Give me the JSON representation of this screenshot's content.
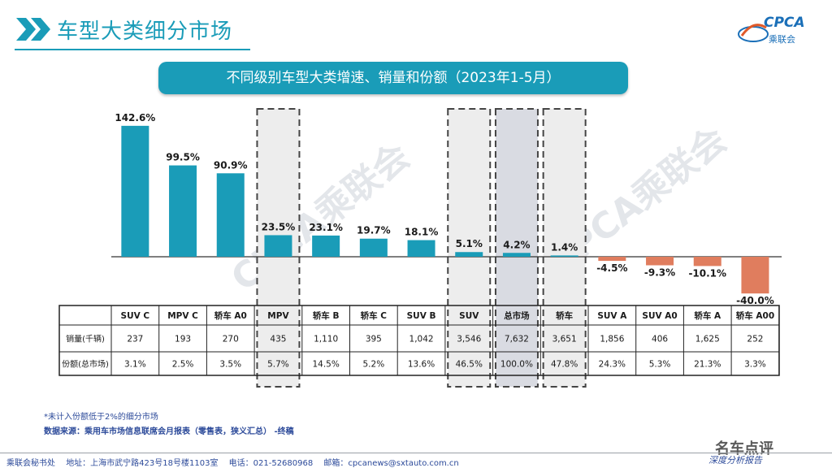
{
  "header": {
    "title": "车型大类细分市场",
    "logo_text": "CPCA",
    "logo_subtext": "乘联会"
  },
  "watermark": {
    "text": "CPCA乘联会"
  },
  "chart_data": {
    "type": "bar",
    "title": "不同级别车型大类增速、销量和份额（2023年1-5月）",
    "categories": [
      "SUV C",
      "MPV C",
      "轿车 A0",
      "MPV",
      "轿车 B",
      "轿车 C",
      "SUV B",
      "SUV",
      "总市场",
      "轿车",
      "SUV A",
      "SUV A0",
      "轿车 A",
      "轿车 A00"
    ],
    "growth_labels": [
      "142.6%",
      "99.5%",
      "90.9%",
      "23.5%",
      "23.1%",
      "19.7%",
      "18.1%",
      "5.1%",
      "4.2%",
      "1.4%",
      "-4.5%",
      "-9.3%",
      "-10.1%",
      "-40.0%"
    ],
    "values": [
      142.6,
      99.5,
      90.9,
      23.5,
      23.1,
      19.7,
      18.1,
      5.1,
      4.2,
      1.4,
      -4.5,
      -9.3,
      -10.1,
      -40.0
    ],
    "highlighted": [
      false,
      false,
      false,
      true,
      false,
      false,
      false,
      true,
      true,
      true,
      false,
      false,
      false,
      false
    ],
    "table": {
      "row_labels": [
        "销量(千辆)",
        "份额(总市场)"
      ],
      "sales": [
        "237",
        "193",
        "270",
        "435",
        "1,110",
        "395",
        "1,042",
        "3,546",
        "7,632",
        "3,651",
        "1,856",
        "406",
        "1,625",
        "252"
      ],
      "shares": [
        "3.1%",
        "2.5%",
        "3.5%",
        "5.7%",
        "14.5%",
        "5.2%",
        "13.6%",
        "46.5%",
        "100.0%",
        "47.8%",
        "24.3%",
        "5.3%",
        "21.3%",
        "3.3%"
      ]
    },
    "colors": {
      "positive": "#1a9cb8",
      "negative": "#e07d5e",
      "highlight_fill": "#ededed",
      "total_fill": "#d9dbe2"
    }
  },
  "notes": {
    "note1": "*未计入份额低于2%的细分市场",
    "source": "数据来源：乘用车市场信息联席会月报表（零售表，狭义汇总） -终稿"
  },
  "footer": {
    "office": "乘联会秘书处",
    "address": "地址：上海市武宁路423号18号楼1103室",
    "phone": "电话：021-52680968",
    "email": "邮箱：cpcanews@sxtauto.com.cn",
    "slogan": "深度分析报告",
    "weibo": "名车点评"
  }
}
